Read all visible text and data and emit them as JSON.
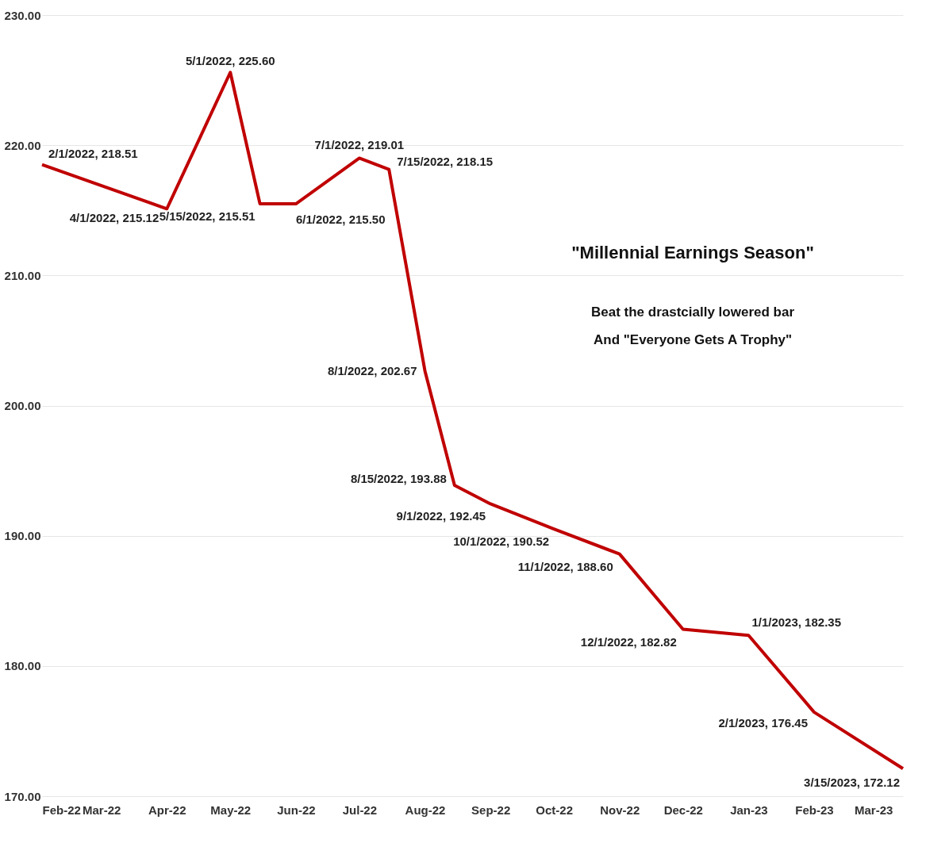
{
  "chart_data": {
    "type": "line",
    "x": [
      "2022-02-01",
      "2022-04-01",
      "2022-05-01",
      "2022-05-15",
      "2022-06-01",
      "2022-07-01",
      "2022-07-15",
      "2022-08-01",
      "2022-08-15",
      "2022-09-01",
      "2022-10-01",
      "2022-11-01",
      "2022-12-01",
      "2023-01-01",
      "2023-02-01",
      "2023-03-15"
    ],
    "series": [
      {
        "color": "#c00000",
        "values": [
          218.51,
          215.12,
          225.6,
          215.51,
          215.5,
          219.01,
          218.15,
          202.67,
          193.88,
          192.45,
          190.52,
          188.6,
          182.82,
          182.35,
          176.45,
          172.12
        ],
        "value_labels": [
          "2/1/2022, 218.51",
          "4/1/2022, 215.12",
          "5/1/2022, 225.60",
          "5/15/2022, 215.51",
          "6/1/2022, 215.50",
          "7/1/2022, 219.01",
          "7/15/2022, 218.15",
          "8/1/2022, 202.67",
          "8/15/2022, 193.88",
          "9/1/2022, 192.45",
          "10/1/2022, 190.52",
          "11/1/2022, 188.60",
          "12/1/2022, 182.82",
          "1/1/2023, 182.35",
          "2/1/2023, 176.45",
          "3/15/2023, 172.12"
        ]
      }
    ],
    "xlim": [
      "2022-02-01",
      "2023-03-15"
    ],
    "xticks": [
      {
        "value": "2022-02-01",
        "label": "Feb-22"
      },
      {
        "value": "2022-03-01",
        "label": "Mar-22"
      },
      {
        "value": "2022-04-01",
        "label": "Apr-22"
      },
      {
        "value": "2022-05-01",
        "label": "May-22"
      },
      {
        "value": "2022-06-01",
        "label": "Jun-22"
      },
      {
        "value": "2022-07-01",
        "label": "Jul-22"
      },
      {
        "value": "2022-08-01",
        "label": "Aug-22"
      },
      {
        "value": "2022-09-01",
        "label": "Sep-22"
      },
      {
        "value": "2022-10-01",
        "label": "Oct-22"
      },
      {
        "value": "2022-11-01",
        "label": "Nov-22"
      },
      {
        "value": "2022-12-01",
        "label": "Dec-22"
      },
      {
        "value": "2023-01-01",
        "label": "Jan-23"
      },
      {
        "value": "2023-02-01",
        "label": "Feb-23"
      },
      {
        "value": "2023-03-01",
        "label": "Mar-23"
      }
    ],
    "ylim": [
      170,
      230
    ],
    "yticks": [
      {
        "value": 170,
        "label": "170.00"
      },
      {
        "value": 180,
        "label": "180.00"
      },
      {
        "value": 190,
        "label": "190.00"
      },
      {
        "value": 200,
        "label": "200.00"
      },
      {
        "value": 210,
        "label": "210.00"
      },
      {
        "value": 220,
        "label": "220.00"
      },
      {
        "value": 230,
        "label": "230.00"
      }
    ],
    "grid": "y",
    "legend": false,
    "marker": "none",
    "line_style": "solid",
    "annotations": [
      "\"Millennial Earnings Season\"",
      "Beat the drastcially lowered bar",
      "And \"Everyone Gets A Trophy\""
    ]
  }
}
